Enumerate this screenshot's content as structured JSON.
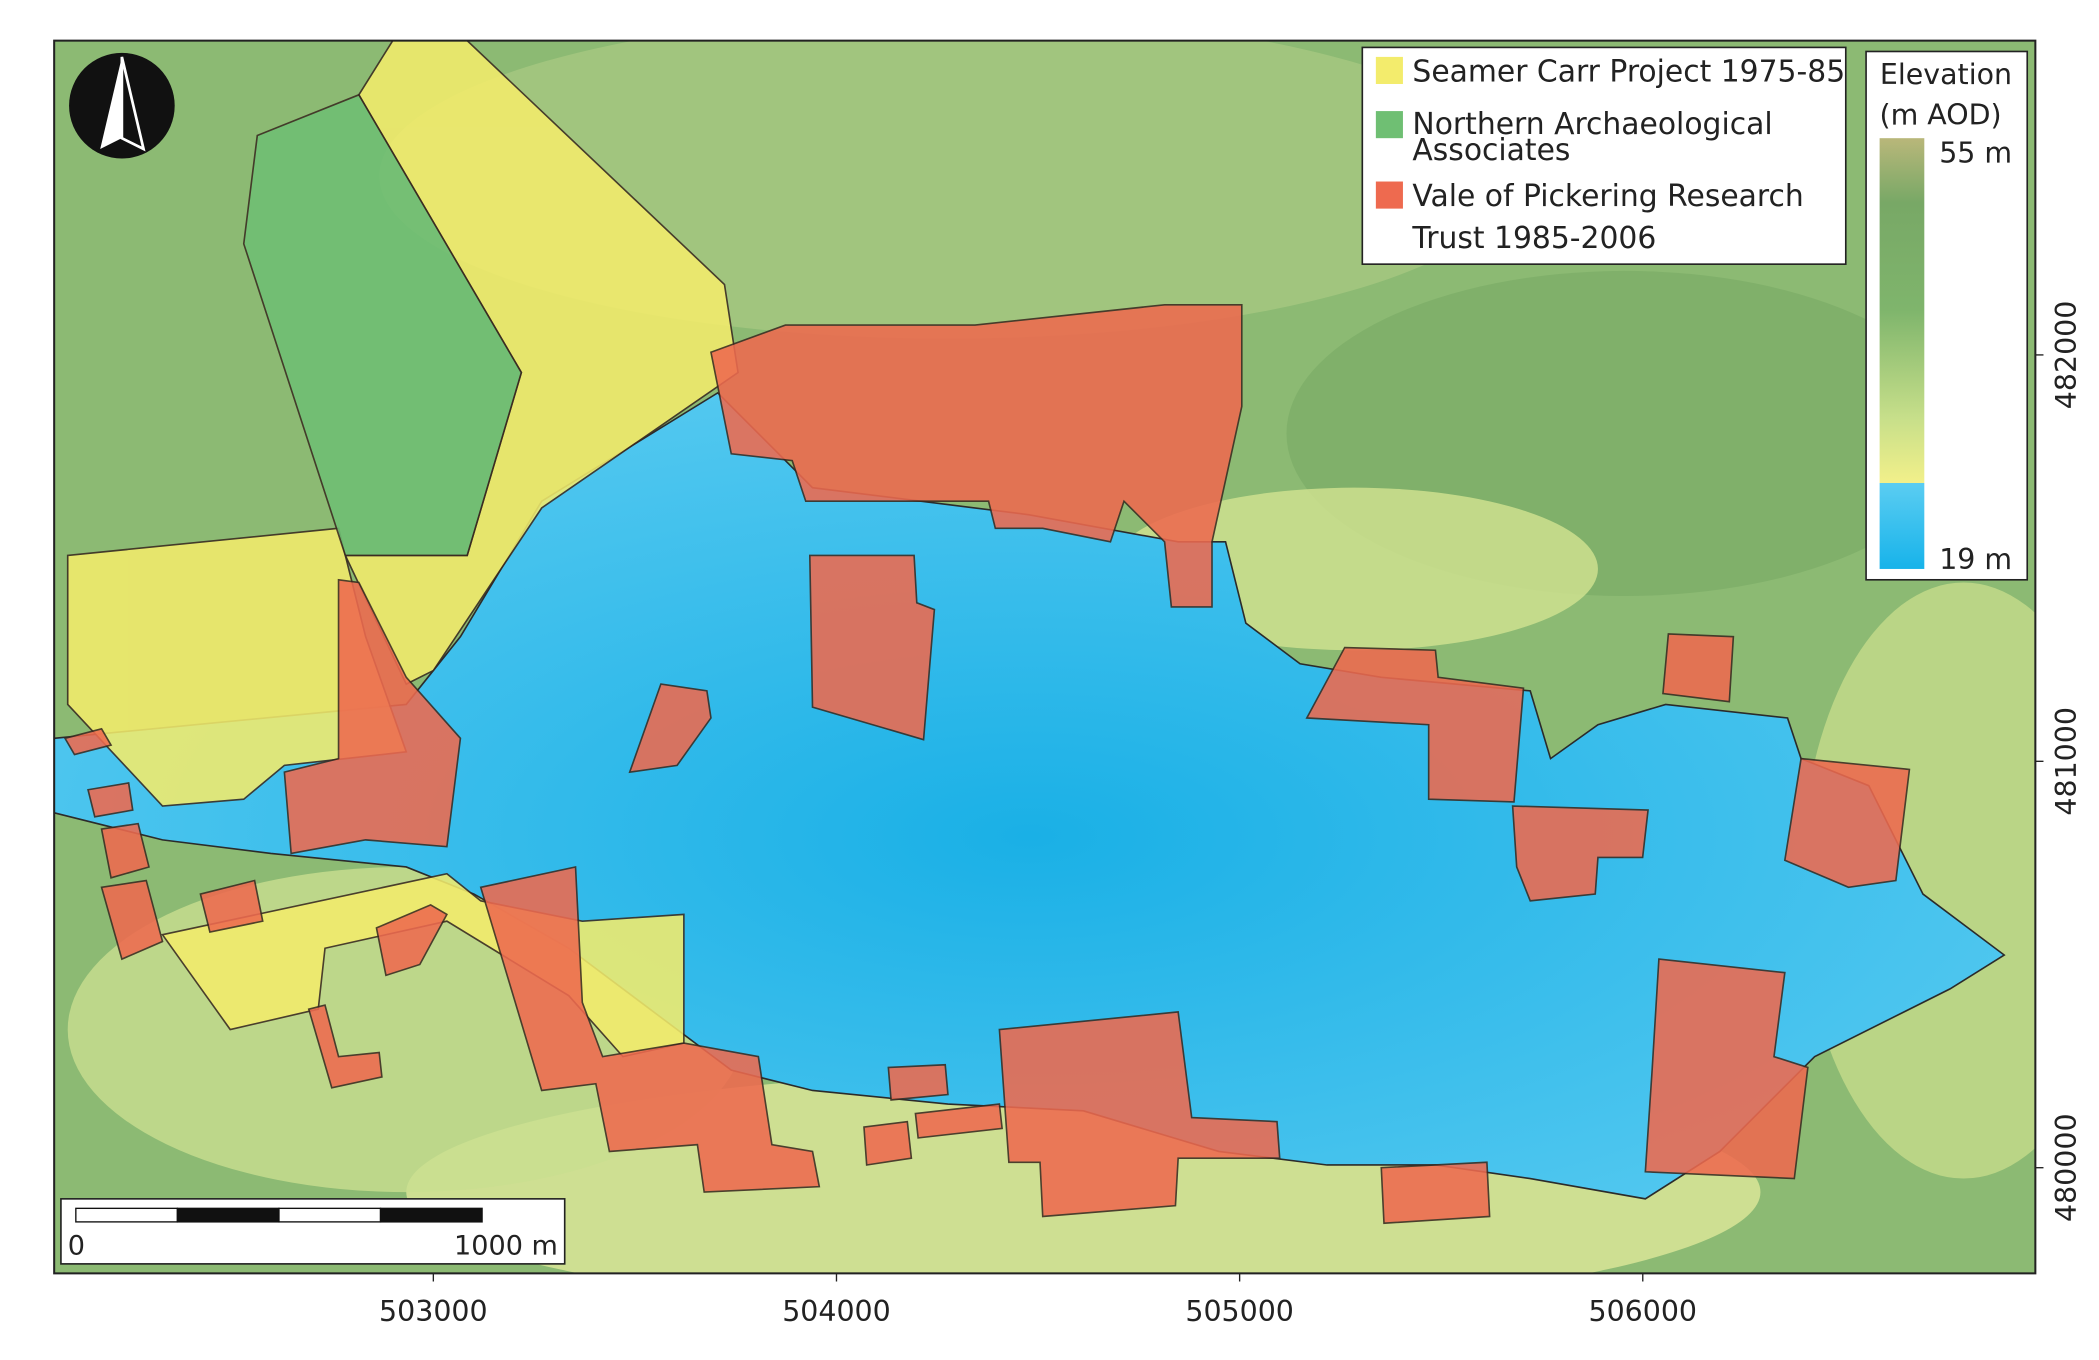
{
  "legend": {
    "items": [
      {
        "label_lines": [
          "Seamer Carr Project 1975-85"
        ],
        "color": "#f3ec6c"
      },
      {
        "label_lines": [
          "Northern Archaeological",
          "Associates"
        ],
        "color": "#6fbf73"
      },
      {
        "label_lines": [
          "Vale of Pickering Research",
          "Trust 1985-2006"
        ],
        "color": "#ee6a4f"
      }
    ]
  },
  "elevation": {
    "title_lines": [
      "Elevation",
      "(m AOD)"
    ],
    "max_label": "55 m",
    "min_label": "19 m"
  },
  "scale_bar": {
    "start_label": "0",
    "end_label": "1000 m"
  },
  "axes": {
    "x_ticks": [
      503000,
      504000,
      505000,
      506000
    ],
    "y_ticks": [
      482000,
      481000,
      480000
    ]
  }
}
